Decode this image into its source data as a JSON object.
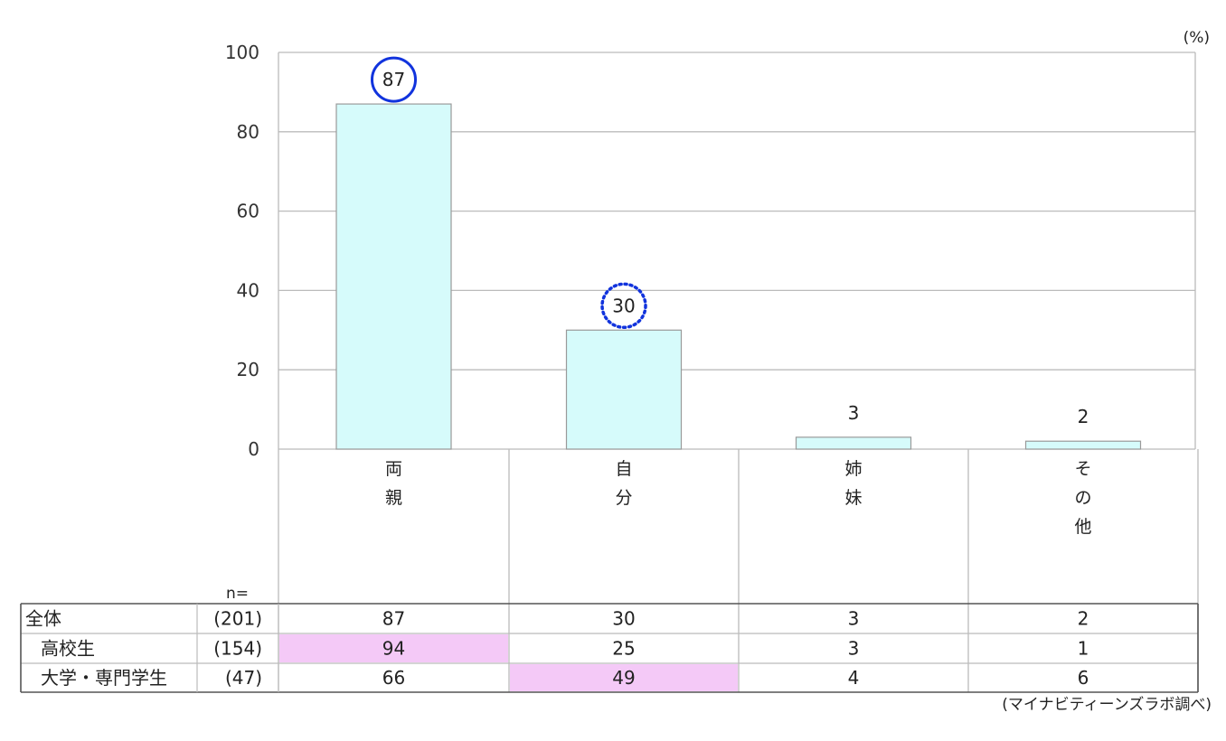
{
  "chart_data": {
    "type": "bar",
    "unit_label": "(%)",
    "ylim": [
      0,
      100
    ],
    "yticks": [
      0,
      20,
      40,
      60,
      80,
      100
    ],
    "categories": [
      "両親",
      "自分",
      "姉妹",
      "その他"
    ],
    "values": [
      87,
      30,
      3,
      2
    ],
    "value_labels": [
      "87",
      "30",
      "3",
      "2"
    ],
    "circled": [
      {
        "index": 0,
        "style": "solid"
      },
      {
        "index": 1,
        "style": "dotted"
      }
    ],
    "bar_color": "#d6fbfb",
    "bar_edge_color": "#9a9a9a",
    "grid": true
  },
  "table": {
    "n_label": "n=",
    "rows": [
      {
        "label": "全体",
        "n": "(201)",
        "values": [
          "87",
          "30",
          "3",
          "2"
        ],
        "indent": false,
        "highlight": []
      },
      {
        "label": "高校生",
        "n": "(154)",
        "values": [
          "94",
          "25",
          "3",
          "1"
        ],
        "indent": true,
        "highlight": [
          0
        ]
      },
      {
        "label": "大学・専門学生",
        "n": "(47)",
        "values": [
          "66",
          "49",
          "4",
          "6"
        ],
        "indent": true,
        "highlight": [
          1
        ]
      }
    ],
    "highlight_color": "#f4c9f7"
  },
  "source": "(マイナビティーンズラボ調べ)",
  "colors": {
    "circle": "#1133dd",
    "grid": "#bbbbbb",
    "border": "#555555"
  }
}
